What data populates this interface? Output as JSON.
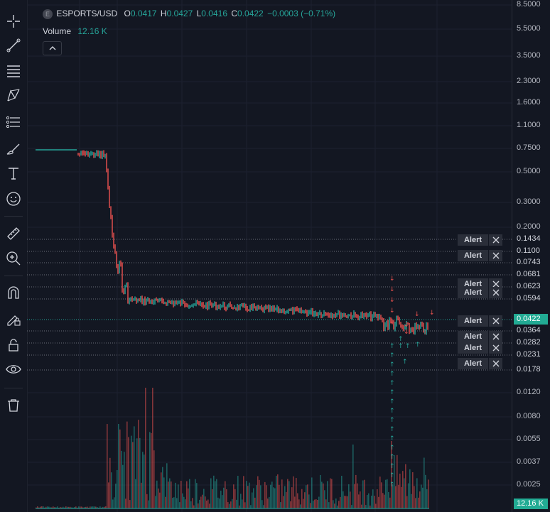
{
  "symbol": {
    "letter": "E",
    "name": "ESPORTS/USD",
    "open_label": "O",
    "open": "0.0417",
    "high_label": "H",
    "high": "0.0427",
    "low_label": "L",
    "low": "0.0416",
    "close_label": "C",
    "close": "0.0422",
    "change": "−0.0003 (−0.71%)"
  },
  "volume": {
    "label": "Volume",
    "value": "12.16 K"
  },
  "toolbar": {
    "tools": [
      "crosshair-icon",
      "trend-line-icon",
      "horizontal-lines-icon",
      "pattern-icon",
      "fib-icon",
      "brush-icon",
      "text-icon",
      "emoji-icon",
      "ruler-icon",
      "zoom-in-icon",
      "magnet-icon",
      "lock-drawing-icon",
      "lock-icon",
      "eye-icon",
      "trash-icon"
    ]
  },
  "price_axis": {
    "ticks": [
      "8.5000",
      "5.5000",
      "3.5000",
      "2.3000",
      "1.6000",
      "1.1000",
      "0.7500",
      "0.5000",
      "0.3000",
      "0.2000",
      "0.0120",
      "0.0080",
      "0.0055",
      "0.0037",
      "0.0025"
    ],
    "current_price": "0.0422",
    "current_volume": "12.16 K",
    "colors": {
      "up": "#26a69a",
      "down": "#ef5350",
      "current_bg": "#22ab94",
      "alert_bg": "#2a2e39"
    }
  },
  "alerts": {
    "button_label": "Alert",
    "levels": [
      "0.1434",
      "0.1100",
      "0.0743",
      "0.0681",
      "0.0623",
      "0.0594",
      "0.0364",
      "0.0282",
      "0.0231",
      "0.0178"
    ]
  }
}
